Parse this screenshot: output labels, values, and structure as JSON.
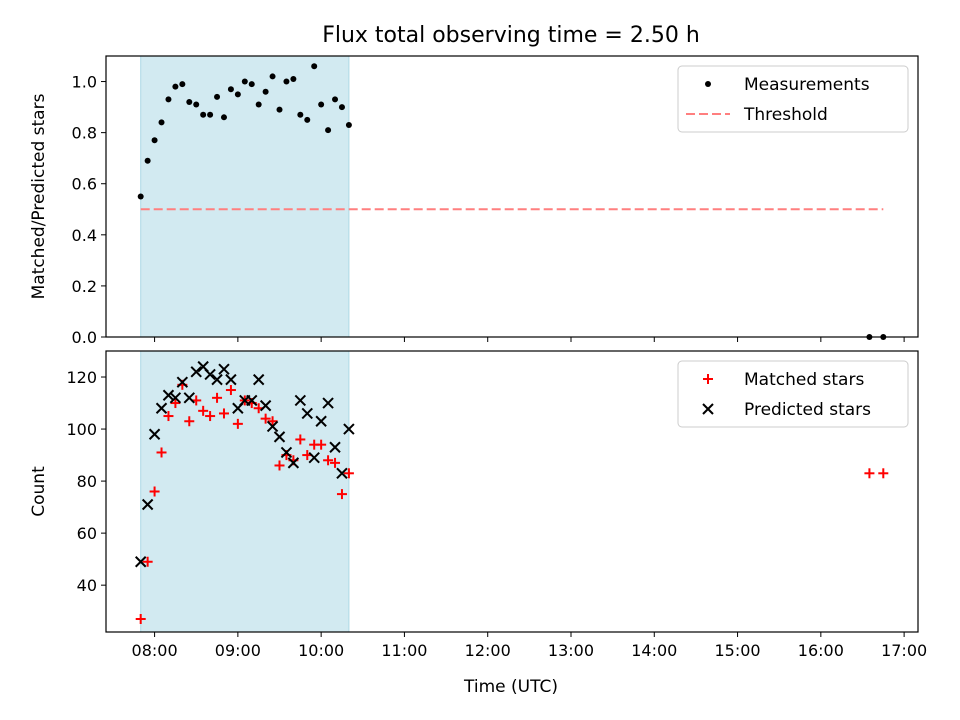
{
  "figure": {
    "title": "Flux total observing time = 2.50 h",
    "xlabel": "Time (UTC)"
  },
  "chart_data": [
    {
      "type": "scatter",
      "ylabel": "Matched/Predicted stars",
      "xlim": [
        "07:25",
        "17:10"
      ],
      "ylim": [
        0,
        1.1
      ],
      "yticks": [
        0.0,
        0.2,
        0.4,
        0.6,
        0.8,
        1.0
      ],
      "ytick_labels": [
        "0.0",
        "0.2",
        "0.4",
        "0.6",
        "0.8",
        "1.0"
      ],
      "xticks": [
        "08:00",
        "09:00",
        "10:00",
        "11:00",
        "12:00",
        "13:00",
        "14:00",
        "15:00",
        "16:00",
        "17:00"
      ],
      "shaded_span": [
        "07:50",
        "10:20"
      ],
      "shade_color": "#add8e6",
      "legend": {
        "position": "top-right",
        "entries": [
          "Measurements",
          "Threshold"
        ]
      },
      "series": [
        {
          "name": "Measurements",
          "marker": "dot",
          "color": "#000000",
          "x": [
            "07:50",
            "07:55",
            "08:00",
            "08:05",
            "08:10",
            "08:15",
            "08:20",
            "08:25",
            "08:30",
            "08:35",
            "08:40",
            "08:45",
            "08:50",
            "08:55",
            "09:00",
            "09:05",
            "09:10",
            "09:15",
            "09:20",
            "09:25",
            "09:30",
            "09:35",
            "09:40",
            "09:45",
            "09:50",
            "09:55",
            "10:00",
            "10:05",
            "10:10",
            "10:15",
            "10:20",
            "16:35",
            "16:45"
          ],
          "y": [
            0.55,
            0.69,
            0.77,
            0.84,
            0.93,
            0.98,
            0.99,
            0.92,
            0.91,
            0.87,
            0.87,
            0.94,
            0.86,
            0.97,
            0.95,
            1.0,
            0.99,
            0.91,
            0.96,
            1.02,
            0.89,
            1.0,
            1.01,
            0.87,
            0.85,
            1.06,
            0.91,
            0.81,
            0.93,
            0.9,
            0.83,
            0.0,
            0.0
          ]
        },
        {
          "name": "Threshold",
          "marker": "dashed-line",
          "color": "#ff7f7f",
          "x": [
            "07:50",
            "16:45"
          ],
          "y": [
            0.5,
            0.5
          ]
        }
      ]
    },
    {
      "type": "scatter",
      "ylabel": "Count",
      "xlim": [
        "07:25",
        "17:10"
      ],
      "ylim": [
        22,
        130
      ],
      "yticks": [
        40,
        60,
        80,
        100,
        120
      ],
      "ytick_labels": [
        "40",
        "60",
        "80",
        "100",
        "120"
      ],
      "xticks": [
        "08:00",
        "09:00",
        "10:00",
        "11:00",
        "12:00",
        "13:00",
        "14:00",
        "15:00",
        "16:00",
        "17:00"
      ],
      "xtick_labels": [
        "08:00",
        "09:00",
        "10:00",
        "11:00",
        "12:00",
        "13:00",
        "14:00",
        "15:00",
        "16:00",
        "17:00"
      ],
      "shaded_span": [
        "07:50",
        "10:20"
      ],
      "shade_color": "#add8e6",
      "legend": {
        "position": "top-right",
        "entries": [
          "Matched stars",
          "Predicted stars"
        ]
      },
      "series": [
        {
          "name": "Matched stars",
          "marker": "plus",
          "color": "#ff0000",
          "x": [
            "07:50",
            "07:55",
            "08:00",
            "08:05",
            "08:10",
            "08:15",
            "08:20",
            "08:25",
            "08:30",
            "08:35",
            "08:40",
            "08:45",
            "08:50",
            "08:55",
            "09:00",
            "09:05",
            "09:10",
            "09:15",
            "09:20",
            "09:25",
            "09:30",
            "09:35",
            "09:40",
            "09:45",
            "09:50",
            "09:55",
            "10:00",
            "10:05",
            "10:10",
            "10:15",
            "10:20",
            "16:35",
            "16:45"
          ],
          "y": [
            27,
            49,
            76,
            91,
            105,
            110,
            117,
            103,
            111,
            107,
            105,
            112,
            106,
            115,
            102,
            111,
            110,
            108,
            104,
            103,
            86,
            90,
            88,
            96,
            90,
            94,
            94,
            88,
            87,
            75,
            83,
            83,
            83
          ]
        },
        {
          "name": "Predicted stars",
          "marker": "x",
          "color": "#000000",
          "x": [
            "07:50",
            "07:55",
            "08:00",
            "08:05",
            "08:10",
            "08:15",
            "08:20",
            "08:25",
            "08:30",
            "08:35",
            "08:40",
            "08:45",
            "08:50",
            "08:55",
            "09:00",
            "09:05",
            "09:10",
            "09:15",
            "09:20",
            "09:25",
            "09:30",
            "09:35",
            "09:40",
            "09:45",
            "09:50",
            "09:55",
            "10:00",
            "10:05",
            "10:10",
            "10:15",
            "10:20"
          ],
          "y": [
            49,
            71,
            98,
            108,
            113,
            112,
            118,
            112,
            122,
            124,
            121,
            119,
            123,
            119,
            108,
            111,
            111,
            119,
            109,
            101,
            97,
            91,
            87,
            111,
            106,
            89,
            103,
            110,
            93,
            83,
            100
          ]
        }
      ]
    }
  ]
}
